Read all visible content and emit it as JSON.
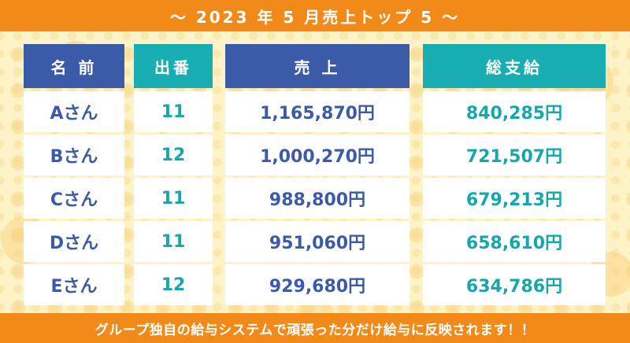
{
  "header": {
    "title": "～ 2023 年 5 月売上トップ 5 ～"
  },
  "table": {
    "columns": [
      "名 前",
      "出番",
      "売 上",
      "総支給"
    ],
    "rows": [
      {
        "name": "Aさん",
        "shifts": "11",
        "sales": "1,165,870円",
        "total_pay": "840,285円"
      },
      {
        "name": "Bさん",
        "shifts": "12",
        "sales": "1,000,270円",
        "total_pay": "721,507円"
      },
      {
        "name": "Cさん",
        "shifts": "11",
        "sales": "988,800円",
        "total_pay": "679,213円"
      },
      {
        "name": "Dさん",
        "shifts": "11",
        "sales": "951,060円",
        "total_pay": "658,610円"
      },
      {
        "name": "Eさん",
        "shifts": "12",
        "sales": "929,680円",
        "total_pay": "634,786円"
      }
    ]
  },
  "footer": {
    "text": "グループ独自の給与システムで頑張った分だけ給与に反映されます！！"
  },
  "colors": {
    "orange_band": "#f28a1a",
    "header_blue": "#3b5ba9",
    "header_teal": "#19aeb1",
    "background": "#fdf3c6"
  }
}
